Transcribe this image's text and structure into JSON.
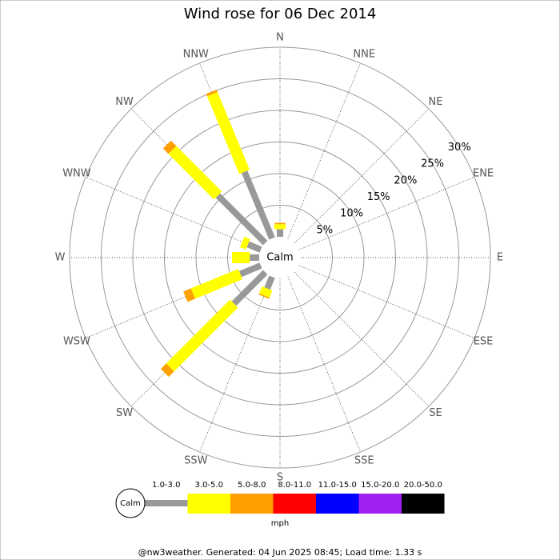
{
  "chart_data": {
    "type": "windrose",
    "title": "Wind rose for 06 Dec 2014",
    "directions": [
      "N",
      "NNE",
      "NE",
      "ENE",
      "E",
      "ESE",
      "SE",
      "SSE",
      "S",
      "SSW",
      "SW",
      "WSW",
      "W",
      "WNW",
      "NW",
      "NNW"
    ],
    "series": [
      {
        "name": "1.0-3.0",
        "color": "#999999",
        "values": [
          1.2,
          0,
          0,
          0,
          0,
          0,
          0,
          0,
          0,
          2,
          7,
          3.5,
          1.5,
          2.2,
          10.6,
          11.4
        ]
      },
      {
        "name": "3.0-5.0",
        "color": "#ffff00",
        "values": [
          0.8,
          0,
          0,
          0,
          0,
          0,
          0,
          0,
          0,
          1.2,
          14.3,
          8.1,
          2.8,
          1,
          10.2,
          13.3
        ]
      },
      {
        "name": "5.0-8.0",
        "color": "#ff9f00",
        "values": [
          0.2,
          0,
          0,
          0,
          0,
          0,
          0,
          0,
          0,
          0.2,
          1.2,
          1.3,
          0,
          0,
          1.2,
          0.4
        ]
      },
      {
        "name": "8.0-11.0",
        "color": "#ff0000",
        "values": [
          0,
          0,
          0,
          0,
          0,
          0,
          0,
          0,
          0,
          0,
          0,
          0,
          0,
          0,
          0,
          0
        ]
      },
      {
        "name": "11.0-15.0",
        "color": "#0000ff",
        "values": [
          0,
          0,
          0,
          0,
          0,
          0,
          0,
          0,
          0,
          0,
          0,
          0,
          0,
          0,
          0,
          0
        ]
      },
      {
        "name": "15.0-20.0",
        "color": "#a020f0",
        "values": [
          0,
          0,
          0,
          0,
          0,
          0,
          0,
          0,
          0,
          0,
          0,
          0,
          0,
          0,
          0,
          0
        ]
      },
      {
        "name": "20.0-50.0",
        "color": "#000000",
        "values": [
          0,
          0,
          0,
          0,
          0,
          0,
          0,
          0,
          0,
          0,
          0,
          0,
          0,
          0,
          0,
          0
        ]
      }
    ],
    "rlim": [
      0,
      30
    ],
    "rticks": [
      {
        "value": 5,
        "label": "5%"
      },
      {
        "value": 10,
        "label": "10%"
      },
      {
        "value": 15,
        "label": "15%"
      },
      {
        "value": 20,
        "label": "20%"
      },
      {
        "value": 25,
        "label": "25%"
      },
      {
        "value": 30,
        "label": "30%"
      }
    ],
    "calm_label": "Calm",
    "units_label": "mph",
    "footer": "@nw3weather. Generated: 04 Jun 2025 08:45; Load time: 1.33 s"
  }
}
